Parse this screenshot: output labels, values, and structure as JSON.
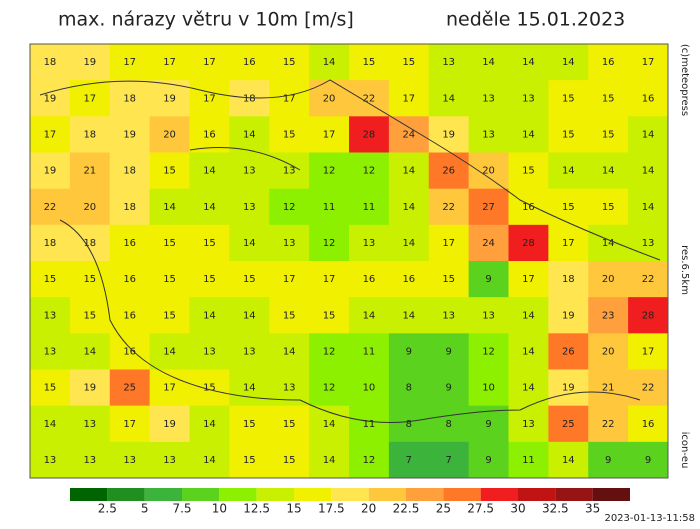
{
  "header": {
    "title": "max. nárazy větru v 10m [m/s]",
    "date": "neděle 15.01.2023"
  },
  "side_labels": {
    "copyright": "(c)meteopress",
    "resolution": "res.6.5km",
    "model": "icon-eu"
  },
  "map": {
    "grid": [
      [
        18,
        19,
        17,
        17,
        17,
        16,
        15,
        14,
        15,
        15,
        13,
        14,
        14,
        14,
        16,
        17
      ],
      [
        19,
        17,
        18,
        19,
        17,
        18,
        17,
        20,
        22,
        17,
        14,
        13,
        13,
        15,
        15,
        16
      ],
      [
        17,
        18,
        19,
        20,
        16,
        14,
        15,
        17,
        28,
        24,
        19,
        13,
        14,
        15,
        15,
        14
      ],
      [
        19,
        21,
        18,
        15,
        14,
        13,
        13,
        12,
        12,
        14,
        26,
        20,
        15,
        14,
        14,
        14
      ],
      [
        22,
        20,
        18,
        14,
        14,
        13,
        12,
        11,
        11,
        14,
        22,
        27,
        16,
        15,
        15,
        14
      ],
      [
        18,
        18,
        16,
        15,
        15,
        14,
        13,
        12,
        13,
        14,
        17,
        24,
        28,
        17,
        14,
        13
      ],
      [
        15,
        15,
        16,
        15,
        15,
        15,
        17,
        17,
        16,
        16,
        15,
        9,
        17,
        18,
        20,
        22
      ],
      [
        13,
        15,
        16,
        15,
        14,
        14,
        15,
        15,
        14,
        14,
        13,
        13,
        14,
        19,
        23,
        28
      ],
      [
        13,
        14,
        16,
        14,
        13,
        13,
        14,
        12,
        11,
        9,
        9,
        12,
        14,
        26,
        20,
        17
      ],
      [
        15,
        19,
        25,
        17,
        15,
        14,
        13,
        12,
        10,
        8,
        9,
        10,
        14,
        19,
        21,
        22
      ],
      [
        14,
        13,
        17,
        19,
        14,
        15,
        15,
        14,
        11,
        8,
        8,
        9,
        13,
        25,
        22,
        16
      ],
      [
        13,
        13,
        13,
        13,
        14,
        15,
        15,
        14,
        12,
        7,
        7,
        9,
        11,
        14,
        9,
        9
      ]
    ]
  },
  "legend": {
    "colors": [
      "#006400",
      "#1f8f1f",
      "#3cb43c",
      "#5ad21e",
      "#8cf000",
      "#c8f000",
      "#f0f000",
      "#ffe650",
      "#ffc83c",
      "#ffa03c",
      "#ff7828",
      "#f01e1e",
      "#c01414",
      "#961414",
      "#641010"
    ],
    "labels": [
      "2.5",
      "5",
      "7.5",
      "10",
      "12.5",
      "15",
      "17.5",
      "20",
      "22.5",
      "25",
      "27.5",
      "30",
      "32.5",
      "35"
    ]
  },
  "timestamp": "2023-01-13-11:58"
}
